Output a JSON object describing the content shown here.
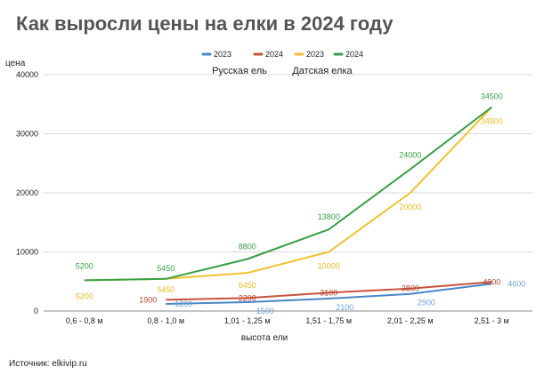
{
  "title": "Как выросли цены на елки в 2024 году",
  "source": "Источник: elkivip.ru",
  "chart_data": {
    "type": "line",
    "title": "Как выросли цены на елки в 2024 году",
    "xlabel": "высота ели",
    "ylabel": "цена",
    "ylim": [
      0,
      40000
    ],
    "yticks": [
      0,
      10000,
      20000,
      30000,
      40000
    ],
    "grid": true,
    "legend_position": "top",
    "group_labels": [
      "Русская ель",
      "Датская елка"
    ],
    "categories": [
      "0,6 - 0,8 м",
      "0,8 - 1,0 м",
      "1,01 - 1,25 м",
      "1,51 - 1,75 м",
      "2,01 - 2,25 м",
      "2,51 - 3 м"
    ],
    "series": [
      {
        "name": "2023",
        "color": "#4a86c8",
        "values": [
          null,
          1200,
          1500,
          2100,
          2900,
          4600
        ],
        "label_color": "#6fa0d6",
        "group": "Русская ель"
      },
      {
        "name": "2024",
        "color": "#c8513c",
        "values": [
          null,
          1900,
          2200,
          3100,
          3800,
          4900
        ],
        "label_color": "#b5452f",
        "group": "Русская ель"
      },
      {
        "name": "2023",
        "color": "#f1c232",
        "values": [
          5200,
          5450,
          6450,
          10000,
          20000,
          34500
        ],
        "label_color": "#e8b923",
        "group": "Датская елка"
      },
      {
        "name": "2024",
        "color": "#38a046",
        "values": [
          5200,
          5450,
          8800,
          13800,
          24000,
          34500
        ],
        "label_color": "#38a046",
        "group": "Датская елка"
      }
    ]
  }
}
